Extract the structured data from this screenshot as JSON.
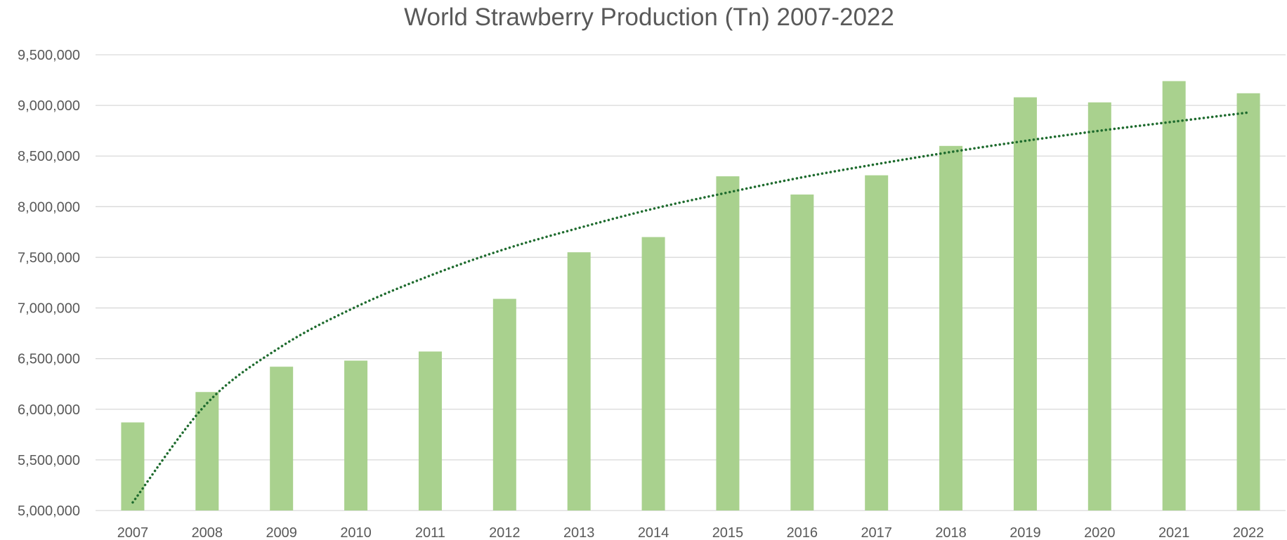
{
  "chart_data": {
    "type": "bar",
    "title": "World Strawberry Production (Tn) 2007-2022",
    "xlabel": "",
    "ylabel": "",
    "categories": [
      "2007",
      "2008",
      "2009",
      "2010",
      "2011",
      "2012",
      "2013",
      "2014",
      "2015",
      "2016",
      "2017",
      "2018",
      "2019",
      "2020",
      "2021",
      "2022"
    ],
    "series": [
      {
        "values": [
          5870000,
          6170000,
          6420000,
          6480000,
          6570000,
          7090000,
          7550000,
          7700000,
          8300000,
          8120000,
          8310000,
          8600000,
          9080000,
          9030000,
          9240000,
          9120000
        ]
      }
    ],
    "trendline": {
      "type": "logarithmic",
      "style": "dotted",
      "values": [
        5080000,
        6060000,
        6620000,
        7010000,
        7320000,
        7580000,
        7790000,
        7980000,
        8140000,
        8290000,
        8420000,
        8540000,
        8650000,
        8750000,
        8840000,
        8930000
      ]
    },
    "ylim": [
      5000000,
      9500000
    ],
    "yticks": [
      5000000,
      5500000,
      6000000,
      6500000,
      7000000,
      7500000,
      8000000,
      8500000,
      9000000,
      9500000
    ],
    "ytick_labels": [
      "5,000,000",
      "5,500,000",
      "6,000,000",
      "6,500,000",
      "7,000,000",
      "7,500,000",
      "8,000,000",
      "8,500,000",
      "9,000,000",
      "9,500,000"
    ],
    "grid": true,
    "legend": "none",
    "colors": {
      "bar": "#a9d18e",
      "trendline": "#1e6b2e",
      "grid": "#d9d9d9",
      "text": "#595959"
    }
  }
}
